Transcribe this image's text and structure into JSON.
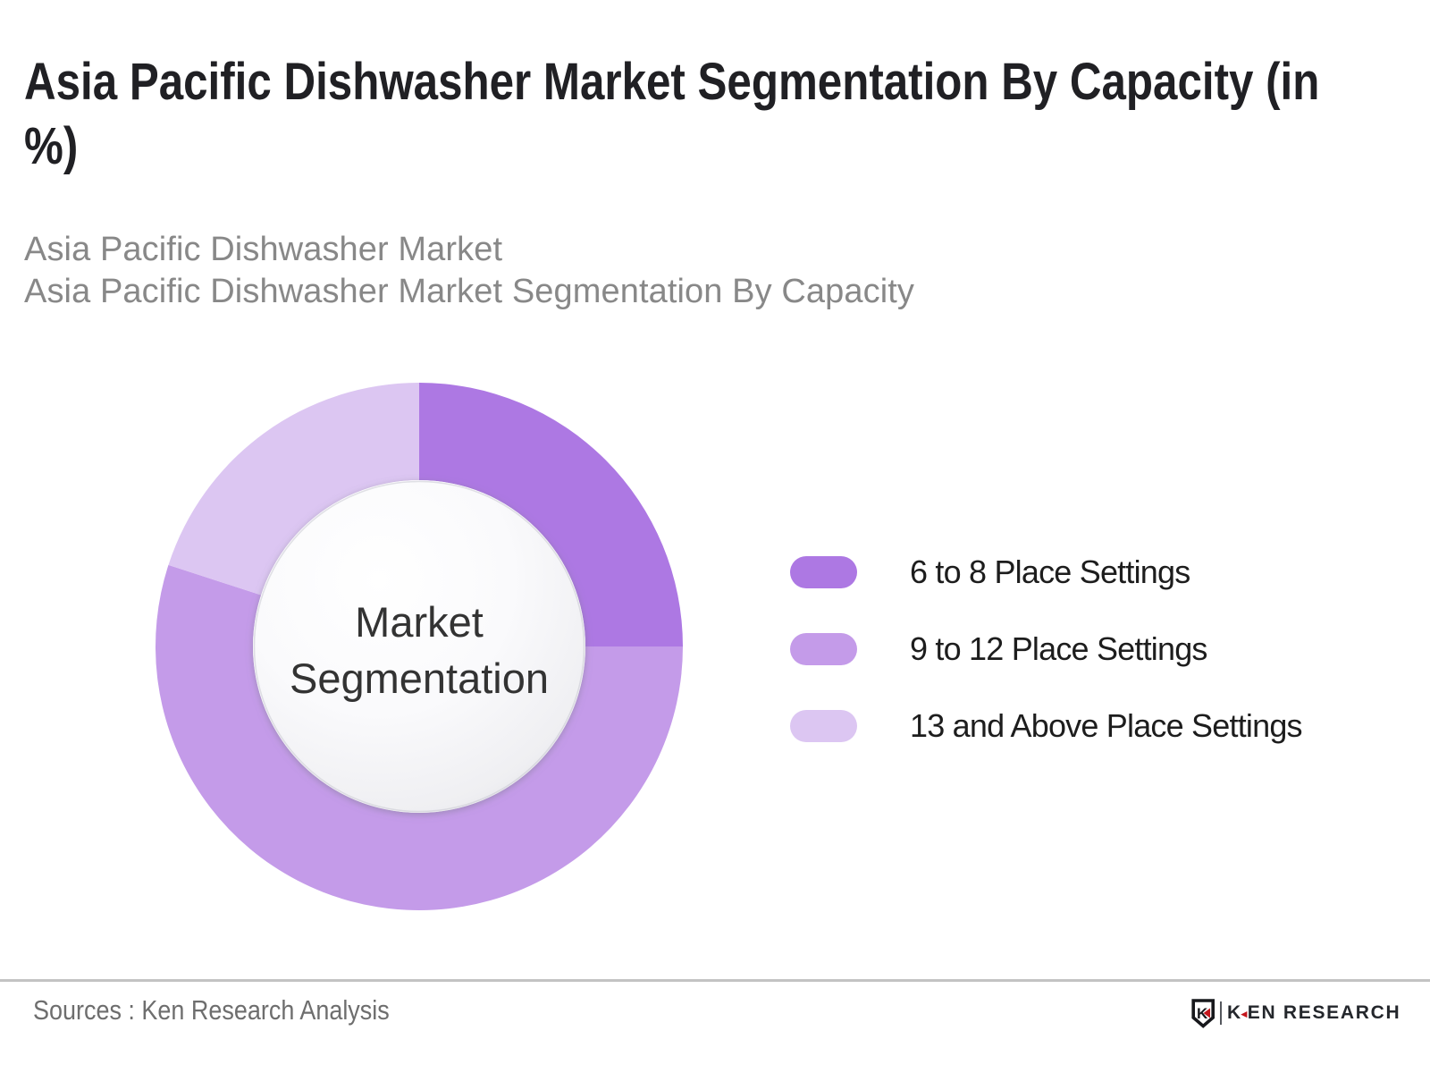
{
  "title": "Asia Pacific Dishwasher Market Segmentation By Capacity (in %)",
  "subtitle_line1": "Asia Pacific Dishwasher Market",
  "subtitle_line2": "Asia Pacific Dishwasher Market Segmentation By Capacity",
  "chart_data": {
    "type": "pie",
    "donut": true,
    "title": "Asia Pacific Dishwasher Market Segmentation By Capacity (in %)",
    "center_label": "Market Segmentation",
    "unit": "%",
    "start_angle_deg": 0,
    "legend_position": "right",
    "segments": [
      {
        "label": "6 to 8 Place Settings",
        "value": 25,
        "color": "#ad78e3"
      },
      {
        "label": "9 to 12 Place Settings",
        "value": 55,
        "color": "#c49be9"
      },
      {
        "label": "13 and Above Place Settings",
        "value": 20,
        "color": "#dcc6f2"
      }
    ]
  },
  "footer": {
    "source_text": "Sources : Ken Research Analysis",
    "logo_text_k": "K",
    "logo_text_rest": "EN RESEARCH",
    "logo_triangle": "◄",
    "logo_red": "#c4161c"
  }
}
